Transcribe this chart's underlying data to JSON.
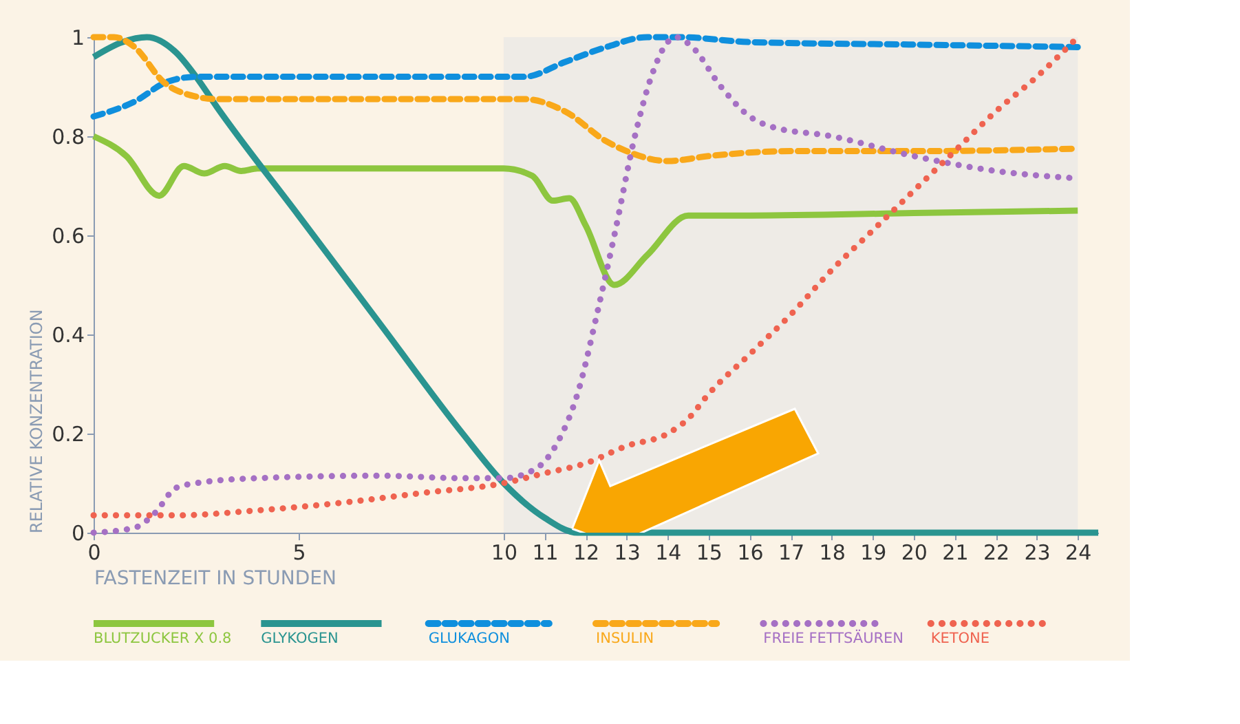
{
  "chart_data": {
    "type": "line",
    "xlabel": "FASTENZEIT IN STUNDEN",
    "ylabel": "RELATIVE KONZENTRATION",
    "xlim": [
      0,
      24.5
    ],
    "xticks": [
      0,
      5,
      10,
      11,
      12,
      13,
      14,
      15,
      16,
      17,
      18,
      19,
      20,
      21,
      22,
      23,
      24
    ],
    "ylim": [
      0,
      1
    ],
    "yticks": [
      0,
      0.2,
      0.4,
      0.6,
      0.8,
      1
    ],
    "grid": false,
    "legend": "bottom",
    "marker": "none",
    "bands": [
      {
        "axis": "x",
        "from": 10,
        "to": 24,
        "color": "#ebe9e6"
      }
    ],
    "series": [
      {
        "name": "BLUTZUCKER X 0.8",
        "color": "#8dc63f",
        "line_style": "solid",
        "x": [
          0,
          0.8,
          1.6,
          2.2,
          2.7,
          3.2,
          3.6,
          4,
          6,
          8,
          10,
          10.7,
          11.2,
          11.6,
          12,
          12.7,
          13.5,
          14.5,
          16,
          20,
          24
        ],
        "values": [
          0.8,
          0.76,
          0.68,
          0.74,
          0.725,
          0.74,
          0.73,
          0.735,
          0.735,
          0.735,
          0.735,
          0.72,
          0.67,
          0.675,
          0.62,
          0.5,
          0.56,
          0.64,
          0.64,
          0.645,
          0.65
        ]
      },
      {
        "name": "GLYKOGEN",
        "color": "#2a9490",
        "line_style": "solid",
        "x": [
          0,
          0.7,
          1.3,
          2,
          2.5,
          3,
          5,
          7,
          9,
          10,
          11,
          11.8,
          15,
          20,
          24.5
        ],
        "values": [
          0.96,
          0.99,
          1.0,
          0.97,
          0.92,
          0.86,
          0.64,
          0.42,
          0.2,
          0.1,
          0.03,
          0,
          0,
          0,
          0
        ]
      },
      {
        "name": "GLUKAGON",
        "color": "#0f8fdd",
        "line_style": "dashed",
        "x": [
          0,
          1,
          1.8,
          2.5,
          6,
          10.5,
          11.5,
          12.5,
          13.5,
          14.3,
          16,
          20,
          24
        ],
        "values": [
          0.84,
          0.87,
          0.91,
          0.92,
          0.92,
          0.92,
          0.95,
          0.98,
          1.0,
          1.0,
          0.99,
          0.985,
          0.98
        ]
      },
      {
        "name": "INSULIN",
        "color": "#f9a81a",
        "line_style": "dashed",
        "x": [
          0,
          0.5,
          1,
          1.7,
          2.5,
          3,
          6,
          10.5,
          11.5,
          12.5,
          13,
          14,
          15,
          17,
          20,
          24
        ],
        "values": [
          1.0,
          1.0,
          0.98,
          0.91,
          0.88,
          0.875,
          0.875,
          0.875,
          0.85,
          0.79,
          0.77,
          0.75,
          0.76,
          0.77,
          0.77,
          0.775
        ]
      },
      {
        "name": "FREIE FETTSÄUREN",
        "color": "#a570c4",
        "line_style": "dotted",
        "x": [
          0,
          1,
          1.5,
          2,
          2.5,
          4,
          7,
          9,
          10,
          10.8,
          11.3,
          11.8,
          12.3,
          12.7,
          13.2,
          13.6,
          14,
          14.2,
          14.6,
          15.3,
          16,
          16.5,
          18,
          20,
          22,
          24
        ],
        "values": [
          0.0,
          0.01,
          0.04,
          0.09,
          0.1,
          0.11,
          0.115,
          0.11,
          0.11,
          0.13,
          0.18,
          0.28,
          0.45,
          0.6,
          0.8,
          0.92,
          0.99,
          1.0,
          0.98,
          0.9,
          0.84,
          0.82,
          0.8,
          0.76,
          0.73,
          0.715
        ]
      },
      {
        "name": "KETONE",
        "color": "#ef6350",
        "line_style": "dotted",
        "x": [
          0,
          2,
          4,
          6,
          8,
          10,
          11,
          12,
          13,
          14,
          14.5,
          15,
          16,
          17,
          18,
          19,
          20,
          21,
          22,
          23,
          24
        ],
        "values": [
          0.035,
          0.035,
          0.045,
          0.06,
          0.08,
          0.1,
          0.12,
          0.14,
          0.175,
          0.2,
          0.23,
          0.28,
          0.36,
          0.44,
          0.53,
          0.61,
          0.69,
          0.77,
          0.85,
          0.92,
          1.0
        ]
      }
    ]
  }
}
